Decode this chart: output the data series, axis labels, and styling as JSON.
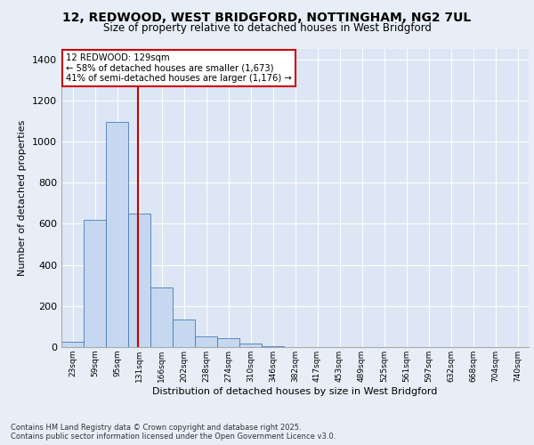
{
  "title_line1": "12, REDWOOD, WEST BRIDGFORD, NOTTINGHAM, NG2 7UL",
  "title_line2": "Size of property relative to detached houses in West Bridgford",
  "xlabel": "Distribution of detached houses by size in West Bridgford",
  "ylabel": "Number of detached properties",
  "bin_labels": [
    "23sqm",
    "59sqm",
    "95sqm",
    "131sqm",
    "166sqm",
    "202sqm",
    "238sqm",
    "274sqm",
    "310sqm",
    "346sqm",
    "382sqm",
    "417sqm",
    "453sqm",
    "489sqm",
    "525sqm",
    "561sqm",
    "597sqm",
    "632sqm",
    "668sqm",
    "704sqm",
    "740sqm"
  ],
  "bar_values": [
    25,
    620,
    1095,
    650,
    290,
    135,
    50,
    45,
    18,
    3,
    0,
    0,
    0,
    0,
    0,
    0,
    0,
    0,
    0,
    0,
    0
  ],
  "bar_color": "#c5d8f0",
  "bar_edge_color": "#4a7ab5",
  "bg_color": "#e8eef7",
  "plot_bg_color": "#dce6f5",
  "grid_color": "#ffffff",
  "vline_color": "#cc0000",
  "annotation_text": "12 REDWOOD: 129sqm\n← 58% of detached houses are smaller (1,673)\n41% of semi-detached houses are larger (1,176) →",
  "annotation_box_color": "#ffffff",
  "annotation_text_color": "#000000",
  "annotation_box_edge_color": "#cc0000",
  "ylim": [
    0,
    1450
  ],
  "yticks": [
    0,
    200,
    400,
    600,
    800,
    1000,
    1200,
    1400
  ],
  "footer_line1": "Contains HM Land Registry data © Crown copyright and database right 2025.",
  "footer_line2": "Contains public sector information licensed under the Open Government Licence v3.0."
}
